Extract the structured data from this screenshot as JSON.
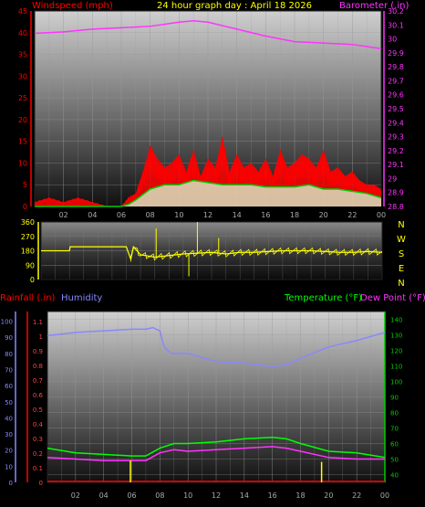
{
  "header": {
    "left_label": "Windspeed (mph)",
    "center_label": "24 hour graph day : April 18 2026",
    "right_label": "Barometer (.in)"
  },
  "colors": {
    "windspeed": "#ff0000",
    "gust_fill": "#ff0000",
    "avg_wind": "#00cc00",
    "barometer": "#ff33ff",
    "direction": "#ffff00",
    "rain": "#ff0000",
    "humidity": "#8888ff",
    "temperature": "#00ff00",
    "dewpoint": "#ff33ff",
    "rain_bar": "#ffff00"
  },
  "chart_data": [
    {
      "type": "line",
      "name": "wind-barometer",
      "x_tick_labels": [
        "02",
        "04",
        "06",
        "08",
        "10",
        "12",
        "14",
        "16",
        "18",
        "20",
        "22",
        "00"
      ],
      "y_left_ticks": [
        0,
        5,
        10,
        15,
        20,
        25,
        30,
        35,
        40,
        45
      ],
      "y_left_range": [
        0,
        45
      ],
      "y_right_ticks": [
        "28.8",
        "28.9",
        "29",
        "29.1",
        "29.2",
        "29.3",
        "29.4",
        "29.5",
        "29.6",
        "29.7",
        "29.8",
        "29.9",
        "30",
        "30.1",
        "30.2"
      ],
      "y_right_range": [
        28.8,
        30.2
      ],
      "barometer": {
        "x_hours": [
          0,
          2,
          4,
          6,
          8,
          10,
          11,
          12,
          14,
          16,
          18,
          20,
          22,
          24
        ],
        "values": [
          30.04,
          30.05,
          30.07,
          30.08,
          30.09,
          30.12,
          30.13,
          30.12,
          30.07,
          30.02,
          29.98,
          29.97,
          29.96,
          29.93
        ]
      },
      "windspeed_peak": {
        "x_hours": [
          0,
          1,
          2,
          3,
          4,
          5,
          6,
          6.5,
          7,
          7.5,
          8,
          8.5,
          9,
          9.5,
          10,
          10.5,
          11,
          11.5,
          12,
          12.5,
          13,
          13.5,
          14,
          14.5,
          15,
          15.5,
          16,
          16.5,
          17,
          17.5,
          18,
          18.5,
          19,
          19.5,
          20,
          20.5,
          21,
          21.5,
          22,
          22.5,
          23,
          23.5,
          24
        ],
        "values": [
          1,
          2,
          1,
          2,
          1,
          0,
          0,
          2,
          3,
          8,
          14,
          11,
          9,
          10,
          12,
          8,
          13,
          7,
          11,
          9,
          16,
          8,
          12,
          9,
          10,
          8,
          11,
          7,
          13,
          9,
          10,
          12,
          11,
          9,
          13,
          8,
          9,
          7,
          8,
          6,
          5,
          5,
          4
        ]
      },
      "avg_wind": {
        "x_hours": [
          0,
          6,
          6.5,
          7,
          8,
          9,
          10,
          11,
          12,
          13,
          14,
          15,
          16,
          17,
          18,
          19,
          20,
          21,
          22,
          23,
          24
        ],
        "values": [
          0,
          0,
          0.5,
          1.5,
          4,
          5,
          5,
          6,
          5.5,
          5,
          5,
          5,
          4.5,
          4.5,
          4.5,
          5,
          4,
          4,
          3.5,
          3,
          2
        ]
      }
    },
    {
      "type": "line",
      "name": "wind-direction",
      "y_ticks": [
        "360",
        "270",
        "180",
        "90",
        "0"
      ],
      "y_range": [
        0,
        360
      ],
      "side_labels": [
        "N",
        "W",
        "S",
        "E",
        "N"
      ],
      "x_hours": [
        0,
        2,
        2.05,
        5.8,
        6,
        6.3,
        6.5,
        7,
        8,
        9,
        10,
        11,
        12,
        13,
        14,
        15,
        16,
        17,
        18,
        19,
        20,
        21,
        22,
        23,
        24
      ],
      "values": [
        180,
        180,
        205,
        205,
        205,
        130,
        205,
        155,
        140,
        150,
        160,
        165,
        170,
        160,
        170,
        170,
        175,
        180,
        180,
        180,
        175,
        170,
        170,
        175,
        170
      ]
    },
    {
      "type": "line",
      "name": "rain-humidity-temp",
      "x_tick_labels": [
        "02",
        "04",
        "06",
        "08",
        "10",
        "12",
        "14",
        "16",
        "18",
        "20",
        "22",
        "00"
      ],
      "y_left_humidity_ticks": [
        "0",
        "10",
        "20",
        "30",
        "40",
        "50",
        "60",
        "70",
        "80",
        "90",
        "100"
      ],
      "y_left_rain_ticks": [
        "0",
        "0.1",
        "0.2",
        "0.3",
        "0.4",
        "0.5",
        "0.6",
        "0.7",
        "0.8",
        "0.9",
        "1",
        "1.1"
      ],
      "y_right_temp_ticks": [
        "40",
        "50",
        "60",
        "70",
        "80",
        "90",
        "100",
        "110",
        "120",
        "130",
        "140"
      ],
      "humidity": {
        "x_hours": [
          0,
          2,
          4,
          6,
          7,
          7.5,
          8,
          8.3,
          8.8,
          10,
          12,
          14,
          16,
          17,
          18,
          20,
          22,
          24
        ],
        "values": [
          91,
          93,
          94,
          95,
          95,
          96,
          94,
          84,
          80,
          80,
          75,
          74,
          72,
          73,
          77,
          84,
          88,
          93
        ]
      },
      "temperature": {
        "x_hours": [
          0,
          2,
          4,
          6,
          7,
          8,
          9,
          10,
          12,
          14,
          16,
          17,
          18,
          20,
          22,
          24
        ],
        "values": [
          57,
          54,
          53,
          52,
          52,
          57,
          60,
          60,
          61,
          63,
          64,
          63,
          60,
          55,
          54,
          51
        ]
      },
      "dewpoint": {
        "x_hours": [
          0,
          2,
          4,
          6,
          7,
          8,
          9,
          10,
          12,
          14,
          16,
          17,
          18,
          20,
          22,
          24
        ],
        "values": [
          51,
          50,
          49,
          49,
          49,
          54,
          56,
          55,
          56,
          57,
          58,
          57,
          55,
          51,
          50,
          50
        ]
      },
      "rain_bars": {
        "x_hours": [
          5.9,
          19.5
        ],
        "values": [
          0.15,
          0.14
        ]
      }
    }
  ],
  "panel2": {
    "rain_label": "Rainfall (.in)",
    "humidity_label": "Humidity",
    "temperature_label": "Temperature (°F)",
    "dewpoint_label": "Dew Point (°F)"
  }
}
